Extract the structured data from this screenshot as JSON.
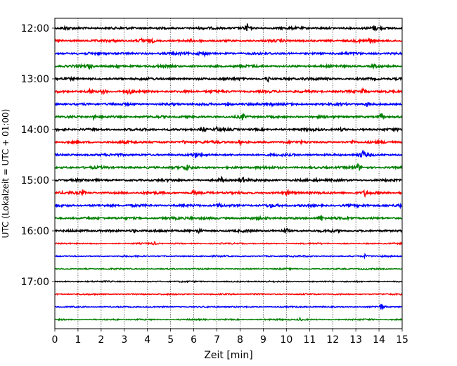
{
  "chart_data": {
    "type": "line",
    "title": "",
    "xlabel": "Zeit  [min]",
    "ylabel": "UTC (Lokalzeit = UTC + 01:00)",
    "xlim": [
      0,
      15
    ],
    "x_ticks": [
      "0",
      "1",
      "2",
      "3",
      "4",
      "5",
      "6",
      "7",
      "8",
      "9",
      "10",
      "11",
      "12",
      "13",
      "14",
      "15"
    ],
    "y_ticks": [
      "12:00",
      "13:00",
      "14:00",
      "15:00",
      "16:00",
      "17:00"
    ],
    "grid": "vertical dotted lines at each minute",
    "trace_interval_minutes": 15,
    "colors": [
      "#000000",
      "#ff0000",
      "#0000ff",
      "#008000"
    ],
    "series": [
      {
        "start": "12:00",
        "color": "#000000",
        "events": [
          [
            0.5,
            0.3
          ],
          [
            8.3,
            0.75
          ],
          [
            13.8,
            0.35
          ]
        ]
      },
      {
        "start": "12:15",
        "color": "#ff0000",
        "events": [
          [
            3.8,
            0.55
          ],
          [
            4.2,
            0.35
          ],
          [
            13.6,
            0.4
          ]
        ]
      },
      {
        "start": "12:30",
        "color": "#0000ff",
        "events": [
          [
            6.3,
            0.45
          ],
          [
            6.5,
            0.25
          ]
        ]
      },
      {
        "start": "12:45",
        "color": "#008000",
        "events": [
          [
            1.5,
            0.3
          ],
          [
            2.7,
            0.35
          ],
          [
            13.8,
            0.3
          ]
        ]
      },
      {
        "start": "13:00",
        "color": "#000000",
        "events": [
          [
            9.2,
            0.45
          ],
          [
            10.8,
            0.2
          ]
        ]
      },
      {
        "start": "13:15",
        "color": "#ff0000",
        "events": [
          [
            1.5,
            0.4
          ],
          [
            2.1,
            0.3
          ],
          [
            3.2,
            0.35
          ],
          [
            13.3,
            0.4
          ]
        ]
      },
      {
        "start": "13:30",
        "color": "#0000ff",
        "events": [
          [
            7.5,
            0.35
          ],
          [
            9.4,
            0.25
          ],
          [
            13.5,
            0.3
          ]
        ]
      },
      {
        "start": "13:45",
        "color": "#008000",
        "events": [
          [
            1.7,
            0.3
          ],
          [
            8.1,
            0.45
          ],
          [
            14.1,
            0.45
          ]
        ]
      },
      {
        "start": "14:00",
        "color": "#000000",
        "events": [
          [
            6.4,
            0.45
          ],
          [
            7.0,
            0.3
          ],
          [
            12.4,
            0.2
          ]
        ]
      },
      {
        "start": "14:15",
        "color": "#ff0000",
        "events": [
          [
            5.6,
            0.3
          ],
          [
            8.0,
            0.3
          ],
          [
            12.9,
            0.3
          ]
        ]
      },
      {
        "start": "14:30",
        "color": "#0000ff",
        "events": [
          [
            6.1,
            0.4
          ],
          [
            13.3,
            0.7
          ]
        ]
      },
      {
        "start": "14:45",
        "color": "#008000",
        "events": [
          [
            5.7,
            0.4
          ],
          [
            13.1,
            0.5
          ]
        ]
      },
      {
        "start": "15:00",
        "color": "#000000",
        "events": [
          [
            7.2,
            0.35
          ],
          [
            8.1,
            0.45
          ],
          [
            11.3,
            0.2
          ]
        ]
      },
      {
        "start": "15:15",
        "color": "#ff0000",
        "events": [
          [
            1.2,
            0.4
          ],
          [
            6.0,
            0.3
          ],
          [
            10.1,
            0.35
          ],
          [
            13.4,
            0.45
          ]
        ]
      },
      {
        "start": "15:30",
        "color": "#0000ff",
        "events": [
          [
            7.1,
            0.25
          ],
          [
            9.3,
            0.25
          ],
          [
            14.9,
            0.3
          ]
        ]
      },
      {
        "start": "15:45",
        "color": "#008000",
        "events": [
          [
            5.9,
            0.2
          ],
          [
            11.5,
            0.55
          ]
        ]
      },
      {
        "start": "16:00",
        "color": "#000000",
        "events": [
          [
            3.4,
            0.3
          ],
          [
            6.2,
            0.3
          ],
          [
            10.0,
            0.4
          ]
        ]
      },
      {
        "start": "16:15",
        "color": "#ff0000",
        "events": [
          [
            4.3,
            0.2
          ]
        ]
      },
      {
        "start": "16:30",
        "color": "#0000ff",
        "events": [
          [
            13.4,
            0.3
          ]
        ]
      },
      {
        "start": "16:45",
        "color": "#008000",
        "events": []
      },
      {
        "start": "17:00",
        "color": "#000000",
        "events": []
      },
      {
        "start": "17:15",
        "color": "#ff0000",
        "events": []
      },
      {
        "start": "17:30",
        "color": "#0000ff",
        "events": [
          [
            14.1,
            0.6
          ]
        ]
      },
      {
        "start": "17:45",
        "color": "#008000",
        "events": [
          [
            10.6,
            0.3
          ]
        ]
      }
    ]
  }
}
